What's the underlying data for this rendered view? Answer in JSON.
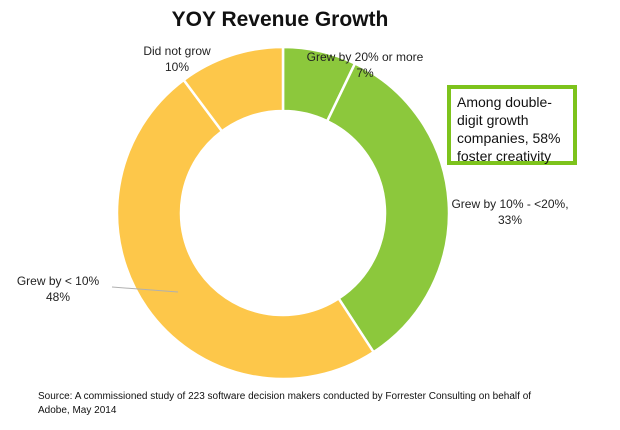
{
  "chart_data": {
    "type": "pie",
    "variant": "donut",
    "title": "YOY Revenue Growth",
    "slices": [
      {
        "label": "Grew by 20% or more",
        "value_label": "7%",
        "value": 7,
        "color": "#8cc83c"
      },
      {
        "label": "Grew by 10% - <20%,",
        "value_label": "33%",
        "value": 33,
        "color": "#8cc83c"
      },
      {
        "label": "Grew by < 10%",
        "value_label": "48%",
        "value": 48,
        "color": "#fdc74a"
      },
      {
        "label": "Did not grow",
        "value_label": "10%",
        "value": 10,
        "color": "#fdc74a"
      }
    ],
    "annotation": "Among double-digit growth companies, 58% foster creativity",
    "annotation_border_color": "#7dc31c"
  },
  "source_note": "Source: A commissioned study of 223 software decision makers conducted by Forrester Consulting on behalf of Adobe, May 2014"
}
